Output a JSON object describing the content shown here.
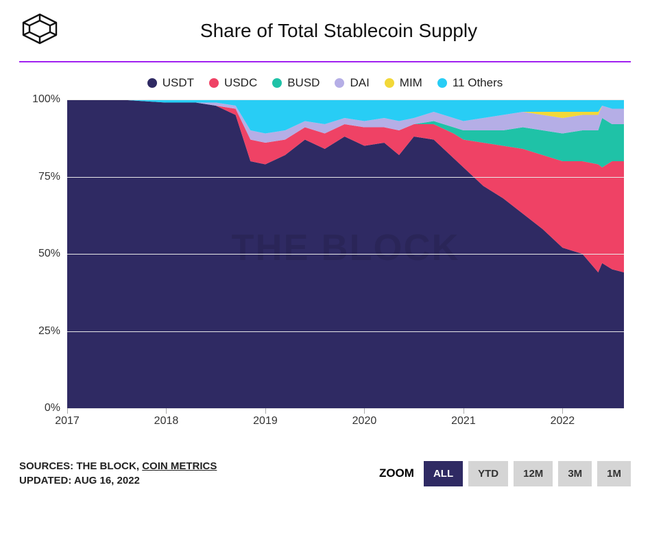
{
  "title": "Share of Total Stablecoin Supply",
  "divider_color": "#a020f0",
  "watermark": "THE BLOCK",
  "chart": {
    "type": "stacked-area-100pct",
    "background_color": "#ffffff",
    "grid_color": "#e9e9e9",
    "ylim": [
      0,
      100
    ],
    "yticks": [
      0,
      25,
      50,
      75,
      100
    ],
    "ytick_labels": [
      "0%",
      "25%",
      "50%",
      "75%",
      "100%"
    ],
    "x_start": 2017.0,
    "x_end": 2022.62,
    "xticks": [
      2017,
      2018,
      2019,
      2020,
      2021,
      2022
    ],
    "xtick_labels": [
      "2017",
      "2018",
      "2019",
      "2020",
      "2021",
      "2022"
    ],
    "x_samples": [
      2017.0,
      2017.5,
      2018.0,
      2018.3,
      2018.5,
      2018.7,
      2018.85,
      2019.0,
      2019.2,
      2019.4,
      2019.6,
      2019.8,
      2020.0,
      2020.2,
      2020.35,
      2020.5,
      2020.7,
      2020.9,
      2021.0,
      2021.2,
      2021.4,
      2021.6,
      2021.8,
      2022.0,
      2022.2,
      2022.36,
      2022.4,
      2022.5,
      2022.62
    ],
    "series": [
      {
        "name": "USDT",
        "color": "#2f2a63",
        "values": [
          100,
          100,
          99,
          99,
          98,
          95,
          80,
          79,
          82,
          87,
          84,
          88,
          85,
          86,
          82,
          88,
          87,
          81,
          78,
          72,
          68,
          63,
          58,
          52,
          50,
          44,
          47,
          45,
          44
        ]
      },
      {
        "name": "USDC",
        "color": "#ef4265",
        "values": [
          0,
          0,
          0,
          0,
          0,
          2,
          7,
          7,
          5,
          4,
          5,
          4,
          6,
          5,
          8,
          4,
          5,
          8,
          9,
          14,
          17,
          21,
          24,
          28,
          30,
          35,
          31,
          35,
          36
        ]
      },
      {
        "name": "BUSD",
        "color": "#1fc2a7",
        "values": [
          0,
          0,
          0,
          0,
          0,
          0,
          0,
          0,
          0,
          0,
          0,
          0,
          0,
          0,
          0,
          0,
          1,
          2,
          3,
          4,
          5,
          7,
          8,
          9,
          10,
          11,
          16,
          12,
          12
        ]
      },
      {
        "name": "DAI",
        "color": "#b5aee6",
        "values": [
          0,
          0,
          0,
          0,
          1,
          1,
          3,
          3,
          3,
          2,
          3,
          2,
          2,
          3,
          3,
          2,
          3,
          3,
          3,
          4,
          5,
          5,
          5,
          5,
          5,
          5,
          4,
          5,
          5
        ]
      },
      {
        "name": "MIM",
        "color": "#f2d838",
        "values": [
          0,
          0,
          0,
          0,
          0,
          0,
          0,
          0,
          0,
          0,
          0,
          0,
          0,
          0,
          0,
          0,
          0,
          0,
          0,
          0,
          0,
          0,
          1,
          2,
          1,
          1,
          0,
          0,
          0
        ]
      },
      {
        "name": "11 Others",
        "color": "#28cdf5",
        "values": [
          0,
          0,
          1,
          1,
          1,
          2,
          10,
          11,
          10,
          7,
          8,
          6,
          7,
          6,
          7,
          6,
          4,
          6,
          7,
          6,
          5,
          4,
          4,
          4,
          4,
          4,
          2,
          3,
          3
        ]
      }
    ]
  },
  "sources": {
    "label_prefix": "SOURCES: ",
    "source1": "THE BLOCK",
    "source2": "COIN METRICS",
    "updated_prefix": "UPDATED: ",
    "updated": "AUG 16, 2022"
  },
  "zoom": {
    "label": "ZOOM",
    "buttons": [
      "ALL",
      "YTD",
      "12M",
      "3M",
      "1M"
    ],
    "active": "ALL",
    "active_bg": "#2f2a63",
    "inactive_bg": "#d5d5d5"
  },
  "legend_fontsize": 17,
  "title_fontsize": 28
}
